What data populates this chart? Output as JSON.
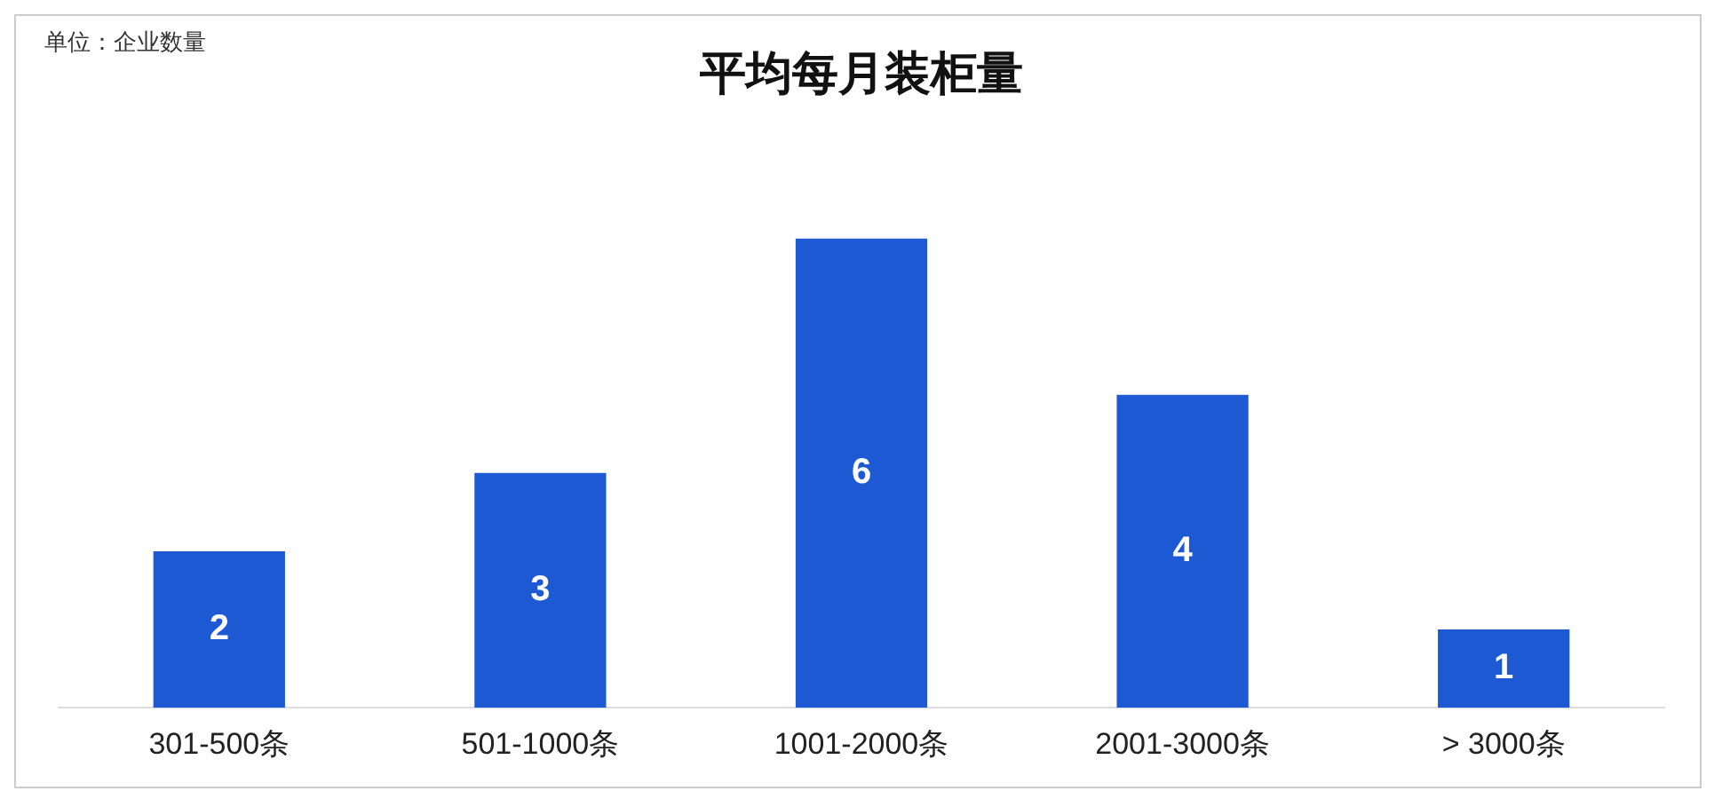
{
  "chart_data": {
    "type": "bar",
    "title": "平均每月装柜量",
    "annotations": [
      "单位：企业数量"
    ],
    "categories": [
      "301-500条",
      "501-1000条",
      "1001-2000条",
      "2001-3000条",
      "> 3000条"
    ],
    "values": [
      2,
      3,
      6,
      4,
      1
    ],
    "color": "#1c59d3",
    "data_labels": true
  }
}
